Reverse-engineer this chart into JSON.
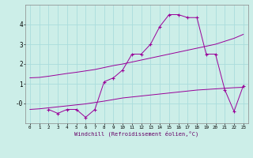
{
  "xlabel": "Windchill (Refroidissement éolien,°C)",
  "bg_color": "#cceee8",
  "grid_color": "#aadddd",
  "line_color": "#990099",
  "line1_x": [
    2,
    3,
    4,
    5,
    6,
    7,
    8,
    9,
    10,
    11,
    12,
    13,
    14,
    15,
    16,
    17,
    18,
    19,
    20,
    21,
    22,
    23
  ],
  "line1_y": [
    -0.3,
    -0.5,
    -0.3,
    -0.3,
    -0.7,
    -0.3,
    1.1,
    1.3,
    1.7,
    2.5,
    2.5,
    3.0,
    3.9,
    4.5,
    4.5,
    4.35,
    4.35,
    2.5,
    2.5,
    0.7,
    -0.4,
    0.9
  ],
  "line2_x": [
    0,
    1,
    2,
    3,
    4,
    5,
    6,
    7,
    8,
    9,
    10,
    11,
    12,
    13,
    14,
    15,
    16,
    17,
    18,
    19,
    20,
    21,
    22,
    23
  ],
  "line2_y": [
    1.3,
    1.32,
    1.38,
    1.45,
    1.52,
    1.58,
    1.65,
    1.72,
    1.82,
    1.92,
    2.0,
    2.1,
    2.2,
    2.3,
    2.4,
    2.5,
    2.6,
    2.7,
    2.8,
    2.9,
    3.0,
    3.15,
    3.3,
    3.5
  ],
  "line3_x": [
    0,
    1,
    2,
    3,
    4,
    5,
    6,
    7,
    8,
    9,
    10,
    11,
    12,
    13,
    14,
    15,
    16,
    17,
    18,
    19,
    20,
    21,
    22,
    23
  ],
  "line3_y": [
    -0.3,
    -0.27,
    -0.22,
    -0.17,
    -0.12,
    -0.07,
    -0.02,
    0.05,
    0.12,
    0.2,
    0.28,
    0.33,
    0.38,
    0.43,
    0.48,
    0.53,
    0.58,
    0.63,
    0.68,
    0.71,
    0.74,
    0.77,
    0.8,
    0.82
  ],
  "xlim": [
    -0.5,
    23.5
  ],
  "ylim": [
    -1.0,
    5.0
  ],
  "yticks": [
    0,
    1,
    2,
    3,
    4
  ],
  "ytick_labels": [
    "-0",
    "1",
    "2",
    "3",
    "4"
  ],
  "xticks": [
    0,
    1,
    2,
    3,
    4,
    5,
    6,
    7,
    8,
    9,
    10,
    11,
    12,
    13,
    14,
    15,
    16,
    17,
    18,
    19,
    20,
    21,
    22,
    23
  ]
}
